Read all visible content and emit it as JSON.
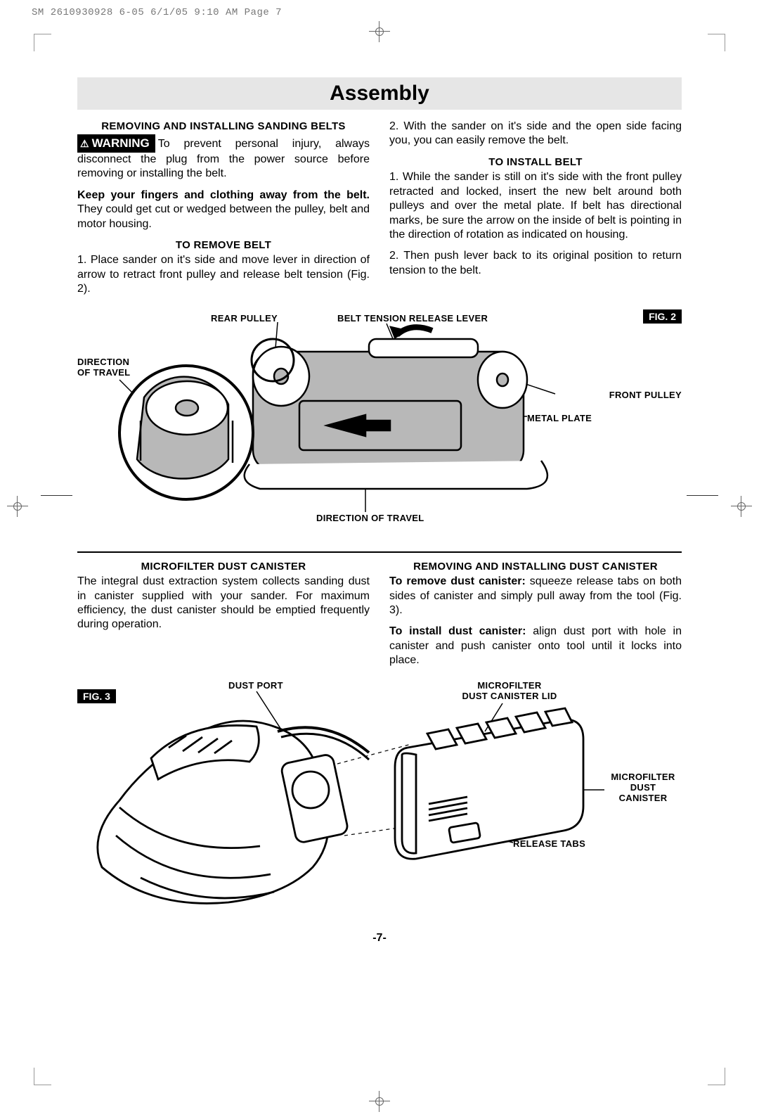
{
  "meta": {
    "header_text": "SM 2610930928 6-05  6/1/05  9:10 AM  Page 7"
  },
  "banner": {
    "title": "Assembly"
  },
  "left_col": {
    "head1": "REMOVING AND INSTALLING SANDING BELTS",
    "warning_label": "WARNING",
    "warning_triangle": "⚠",
    "p1a": "To prevent personal injury, always disconnect the plug from the power source before removing or installing the belt.",
    "p2_bold": "Keep your fingers and clothing away from the belt.",
    "p2_rest": " They could get cut or wedged between the pulley, belt and motor housing.",
    "head2": "TO REMOVE BELT",
    "p3": "1. Place sander on it's side and move lever in direction of arrow to retract front pulley and release belt tension (Fig. 2)."
  },
  "right_col": {
    "p1": "2. With the sander on it's side and the open side facing you, you can easily remove the belt.",
    "head1": "TO INSTALL BELT",
    "p2": "1. While the sander is still on it's side with the front pulley retracted and locked, insert the new belt around both pulleys and over the metal plate. If belt has directional marks, be sure the arrow on the inside of belt is pointing in the direction of rotation as indicated on housing.",
    "p3": "2. Then push lever back to its original position to return tension to the belt."
  },
  "fig2": {
    "label": "FIG. 2",
    "rear_pulley": "REAR PULLEY",
    "tension_lever": "BELT TENSION RELEASE LEVER",
    "direction_left": "DIRECTION\nOF TRAVEL",
    "front_pulley": "FRONT PULLEY",
    "metal_plate": "METAL PLATE",
    "direction_bottom": "DIRECTION OF TRAVEL",
    "colors": {
      "body": "#b8b8b8",
      "outline": "#000000",
      "bg": "#ffffff"
    }
  },
  "section2": {
    "left_head": "MICROFILTER DUST CANISTER",
    "left_p": "The integral dust extraction system collects sanding dust in canister supplied with your sander. For maximum efficiency, the dust canister should be emptied frequently during operation.",
    "right_head": "REMOVING AND INSTALLING DUST CANISTER",
    "right_p1_bold": "To remove dust canister:",
    "right_p1_rest": " squeeze release tabs on both sides of canister and simply pull away from the tool (Fig. 3).",
    "right_p2_bold": "To install dust canister:",
    "right_p2_rest": " align dust port with hole in canister and push canister onto tool until it locks into place."
  },
  "fig3": {
    "label": "FIG. 3",
    "dust_port": "DUST PORT",
    "lid": "MICROFILTER\nDUST CANISTER LID",
    "canister": "MICROFILTER\nDUST\nCANISTER",
    "tabs": "RELEASE TABS"
  },
  "page_number": "-7-"
}
